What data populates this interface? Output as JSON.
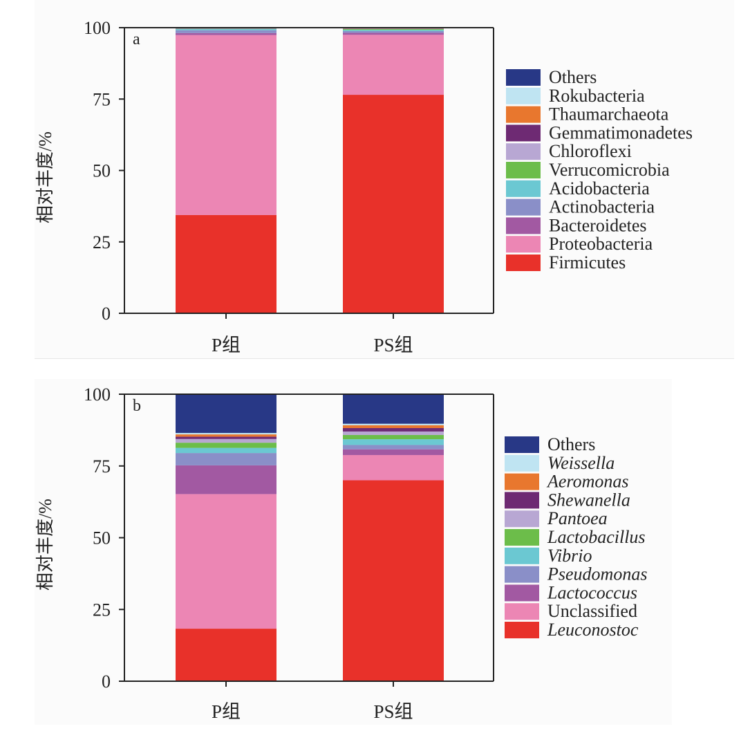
{
  "chart_data": [
    {
      "type": "bar",
      "stacked": true,
      "panel_label": "a",
      "title": "",
      "xlabel": "",
      "ylabel": "相对丰度/%",
      "ylim": [
        0,
        100
      ],
      "yticks": [
        0,
        25,
        50,
        75,
        100
      ],
      "categories": [
        "P组",
        "PS组"
      ],
      "legend_position": "right",
      "grid": false,
      "series": [
        {
          "name": "Firmicutes",
          "italic": false,
          "color": "#e8312a",
          "values": [
            34.4,
            76.5
          ]
        },
        {
          "name": "Proteobacteria",
          "italic": false,
          "color": "#ec86b4",
          "values": [
            63.0,
            21.0
          ]
        },
        {
          "name": "Bacteroidetes",
          "italic": false,
          "color": "#a259a2",
          "values": [
            0.7,
            0.7
          ]
        },
        {
          "name": "Actinobacteria",
          "italic": false,
          "color": "#8a8fc8",
          "values": [
            1.0,
            0.6
          ]
        },
        {
          "name": "Acidobacteria",
          "italic": false,
          "color": "#6bc8d2",
          "values": [
            0.4,
            0.4
          ]
        },
        {
          "name": "Verrucomicrobia",
          "italic": false,
          "color": "#6cbd4a",
          "values": [
            0.1,
            0.3
          ]
        },
        {
          "name": "Chloroflexi",
          "italic": false,
          "color": "#b8a7d3",
          "values": [
            0.1,
            0.1
          ]
        },
        {
          "name": "Gemmatimonadetes",
          "italic": false,
          "color": "#6e2a73",
          "values": [
            0.1,
            0.1
          ]
        },
        {
          "name": "Thaumarchaeota",
          "italic": false,
          "color": "#e8772e",
          "values": [
            0.1,
            0.1
          ]
        },
        {
          "name": "Rokubacteria",
          "italic": false,
          "color": "#bfe4f2",
          "values": [
            0.05,
            0.05
          ]
        },
        {
          "name": "Others",
          "italic": false,
          "color": "#283886",
          "values": [
            0.05,
            0.15
          ]
        }
      ]
    },
    {
      "type": "bar",
      "stacked": true,
      "panel_label": "b",
      "title": "",
      "xlabel": "",
      "ylabel": "相对丰度/%",
      "ylim": [
        0,
        100
      ],
      "yticks": [
        0,
        25,
        50,
        75,
        100
      ],
      "categories": [
        "P组",
        "PS组"
      ],
      "legend_position": "right",
      "grid": false,
      "series": [
        {
          "name": "Leuconostoc",
          "italic": true,
          "color": "#e8312a",
          "values": [
            18.3,
            70.0
          ]
        },
        {
          "name": "Unclassified",
          "italic": false,
          "color": "#ec86b4",
          "values": [
            46.9,
            8.8
          ]
        },
        {
          "name": "Lactococcus",
          "italic": true,
          "color": "#a259a2",
          "values": [
            10.0,
            2.0
          ]
        },
        {
          "name": "Pseudomonas",
          "italic": true,
          "color": "#8a8fc8",
          "values": [
            4.3,
            1.5
          ]
        },
        {
          "name": "Vibrio",
          "italic": true,
          "color": "#6bc8d2",
          "values": [
            1.8,
            2.0
          ]
        },
        {
          "name": "Lactobacillus",
          "italic": true,
          "color": "#6cbd4a",
          "values": [
            1.8,
            1.5
          ]
        },
        {
          "name": "Pantoea",
          "italic": true,
          "color": "#b8a7d3",
          "values": [
            1.3,
            1.2
          ]
        },
        {
          "name": "Shewanella",
          "italic": true,
          "color": "#6e2a73",
          "values": [
            0.8,
            1.2
          ]
        },
        {
          "name": "Aeromonas",
          "italic": true,
          "color": "#e8772e",
          "values": [
            0.8,
            1.0
          ]
        },
        {
          "name": "Weissella",
          "italic": true,
          "color": "#bfe4f2",
          "values": [
            0.5,
            0.5
          ]
        },
        {
          "name": "Others",
          "italic": false,
          "color": "#283886",
          "values": [
            13.5,
            10.3
          ]
        }
      ]
    }
  ]
}
